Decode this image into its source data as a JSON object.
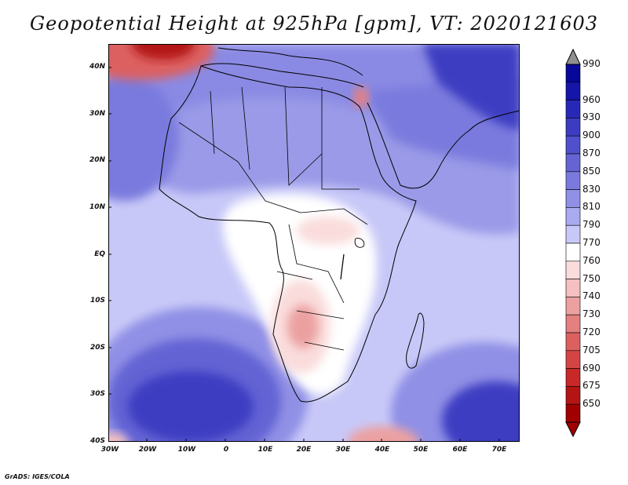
{
  "title": "Geopotential Height at 925hPa [gpm], VT: 2020121603",
  "credit": "GrADS: IGES/COLA",
  "map": {
    "region": "Africa",
    "variable": "Geopotential Height",
    "level": "925hPa",
    "units": "gpm",
    "valid_time": "2020121603",
    "lat_labels": [
      "40N",
      "30N",
      "20N",
      "10N",
      "EQ",
      "10S",
      "20S",
      "30S",
      "40S"
    ],
    "lon_labels": [
      "30W",
      "20W",
      "10W",
      "0",
      "10E",
      "20E",
      "30E",
      "40E",
      "50E",
      "60E",
      "70E"
    ]
  },
  "colorbar": {
    "labels": [
      "990",
      "960",
      "930",
      "900",
      "870",
      "850",
      "830",
      "810",
      "790",
      "770",
      "760",
      "750",
      "740",
      "730",
      "720",
      "705",
      "690",
      "675",
      "650"
    ],
    "colors": [
      "#07079a",
      "#1515aa",
      "#2828b8",
      "#3c3cc2",
      "#5050cc",
      "#6464d4",
      "#7a7ade",
      "#9090e6",
      "#aaaaf0",
      "#c8c8f8",
      "#ffffff",
      "#fadcdc",
      "#f4c0c0",
      "#eca0a0",
      "#e48080",
      "#dc6060",
      "#d44444",
      "#c82828",
      "#b41414",
      "#a00000"
    ],
    "top_arrow_color": "#909090",
    "bottom_arrow_color": "#a00000"
  }
}
